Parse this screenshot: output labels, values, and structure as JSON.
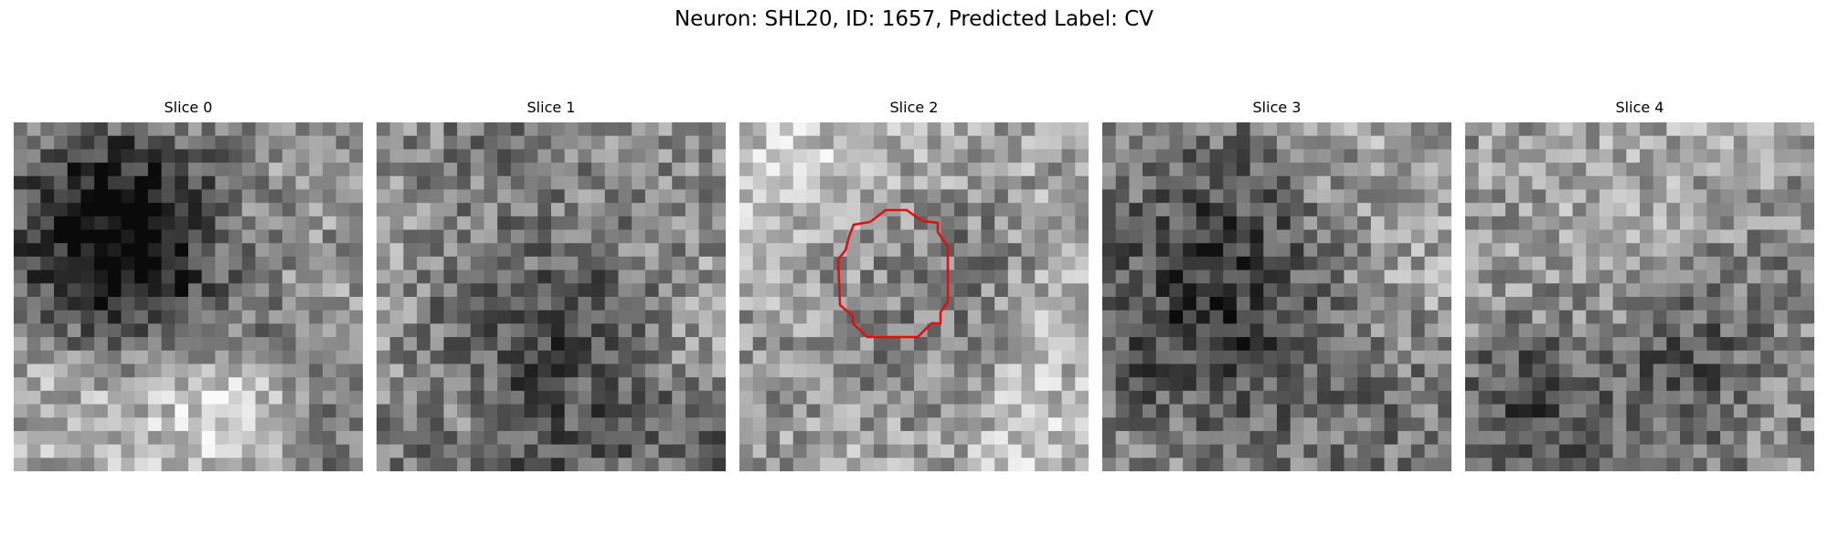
{
  "figure": {
    "title": "Neuron: SHL20, ID: 1657, Predicted Label: CV"
  },
  "panels": [
    {
      "title": "Slice 0",
      "seed": 11,
      "has_contour": false
    },
    {
      "title": "Slice 1",
      "seed": 23,
      "has_contour": false
    },
    {
      "title": "Slice 2",
      "seed": 37,
      "has_contour": true
    },
    {
      "title": "Slice 3",
      "seed": 41,
      "has_contour": false
    },
    {
      "title": "Slice 4",
      "seed": 59,
      "has_contour": false
    }
  ],
  "colors": {
    "contour": "#e01010",
    "background": "#ffffff"
  }
}
